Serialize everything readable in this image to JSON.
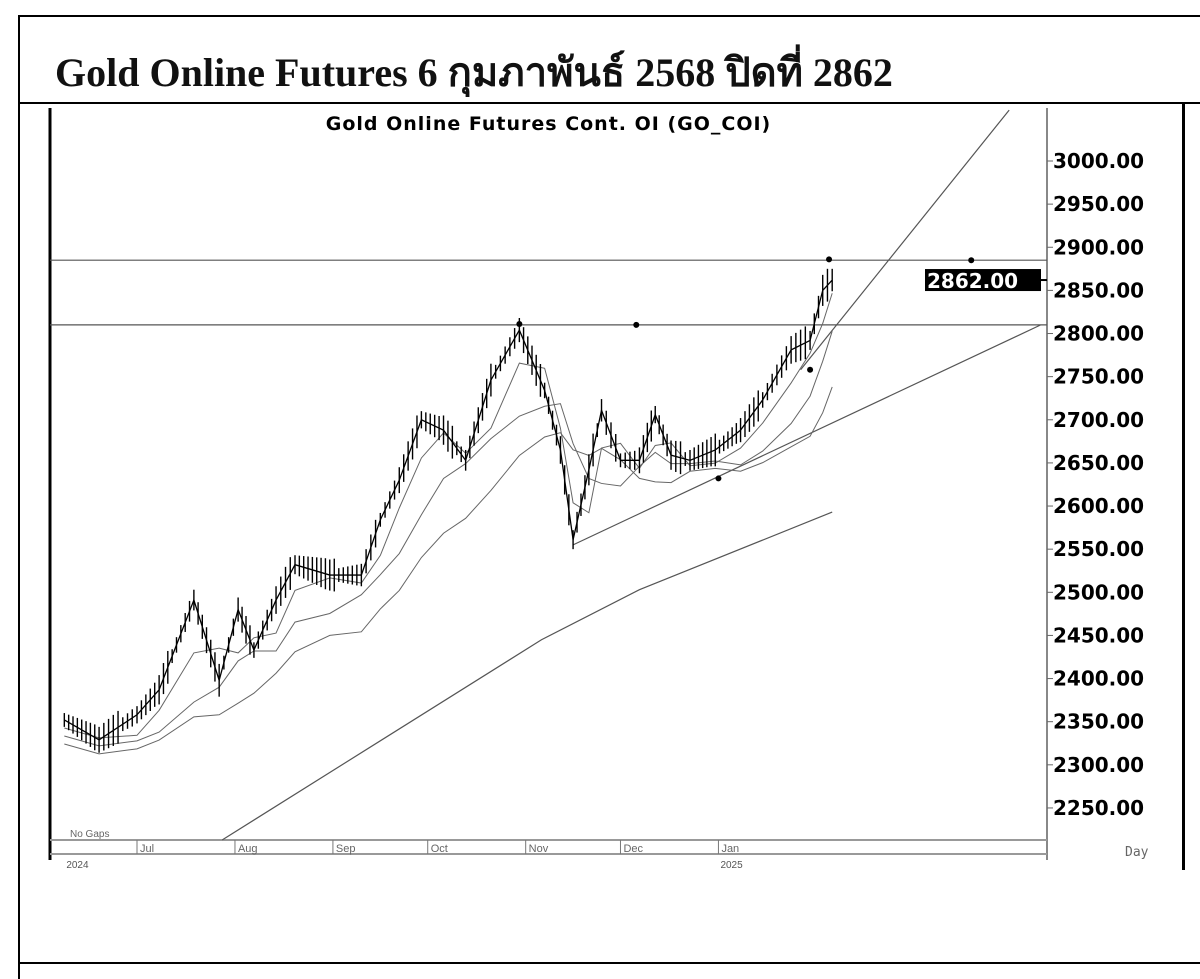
{
  "document": {
    "title": "Gold Online Futures 6 กุมภาพันธ์ 2568 ปิดที่ 2862"
  },
  "chart_data": {
    "type": "line",
    "title": "Gold Online Futures Cont. OI (GO_COI)",
    "last_price_label": "2862.00",
    "note": "No Gaps",
    "period_label": "Day",
    "ylim": [
      2200,
      3070
    ],
    "yticks": [
      "3000.00",
      "2950.00",
      "2900.00",
      "2850.00",
      "2800.00",
      "2750.00",
      "2700.00",
      "2650.00",
      "2600.00",
      "2550.00",
      "2500.00",
      "2450.00",
      "2400.00",
      "2350.00",
      "2300.00",
      "2250.00"
    ],
    "xticks": [
      {
        "label": "Jul",
        "date": "2024-07-01"
      },
      {
        "label": "Aug",
        "date": "2024-08-01"
      },
      {
        "label": "Sep",
        "date": "2024-09-01"
      },
      {
        "label": "Oct",
        "date": "2024-10-01"
      },
      {
        "label": "Nov",
        "date": "2024-11-01"
      },
      {
        "label": "Dec",
        "date": "2024-12-01"
      },
      {
        "label": "Jan",
        "date": "2025-01-01"
      }
    ],
    "year_labels": [
      {
        "label": "2024",
        "date": "2024-06-08"
      },
      {
        "label": "2025",
        "date": "2025-01-01"
      }
    ],
    "series": [
      {
        "dates": [
          "2024-06-08",
          "2024-06-19",
          "2024-07-01",
          "2024-07-08",
          "2024-07-19",
          "2024-07-27",
          "2024-08-02",
          "2024-08-07",
          "2024-08-14",
          "2024-08-20",
          "2024-08-31",
          "2024-09-10",
          "2024-09-16",
          "2024-09-22",
          "2024-09-29",
          "2024-10-06",
          "2024-10-13",
          "2024-10-21",
          "2024-10-30",
          "2024-11-07",
          "2024-11-12",
          "2024-11-16",
          "2024-11-21",
          "2024-11-25",
          "2024-12-01",
          "2024-12-07",
          "2024-12-12",
          "2024-12-17",
          "2024-12-23",
          "2024-12-31",
          "2025-01-08",
          "2025-01-15",
          "2025-01-24",
          "2025-01-30",
          "2025-02-03",
          "2025-02-06"
        ],
        "close": [
          2352,
          2329,
          2358,
          2387,
          2491,
          2398,
          2480,
          2433,
          2491,
          2532,
          2520,
          2520,
          2584,
          2630,
          2700,
          2688,
          2653,
          2746,
          2804,
          2734,
          2665,
          2561,
          2642,
          2711,
          2653,
          2653,
          2706,
          2659,
          2653,
          2665,
          2688,
          2723,
          2781,
          2792,
          2850,
          2862
        ]
      }
    ],
    "long_ma": {
      "dates": [
        "2024-07-28",
        "2024-11-06",
        "2024-12-07",
        "2025-02-06"
      ],
      "values": [
        2213,
        2445,
        2503,
        2593
      ]
    },
    "horizontal_lines": [
      2885,
      2810
    ],
    "trendlines": [
      {
        "from": {
          "date": "2024-11-16",
          "value": 2555
        },
        "to": {
          "date": "2025-04-13",
          "value": 2810
        }
      },
      {
        "from": {
          "date": "2025-01-27",
          "value": 2758
        },
        "to": {
          "date": "2025-04-03",
          "value": 3059
        }
      }
    ],
    "markers": [
      {
        "date": "2024-10-30",
        "value": 2811
      },
      {
        "date": "2024-12-06",
        "value": 2810
      },
      {
        "date": "2025-03-22",
        "value": 2885
      },
      {
        "date": "2025-02-05",
        "value": 2886
      },
      {
        "date": "2025-01-01",
        "value": 2632
      },
      {
        "date": "2025-01-30",
        "value": 2758
      }
    ],
    "colors": {
      "line": "#000000",
      "axis": "#000000",
      "grid": "#999999"
    }
  }
}
